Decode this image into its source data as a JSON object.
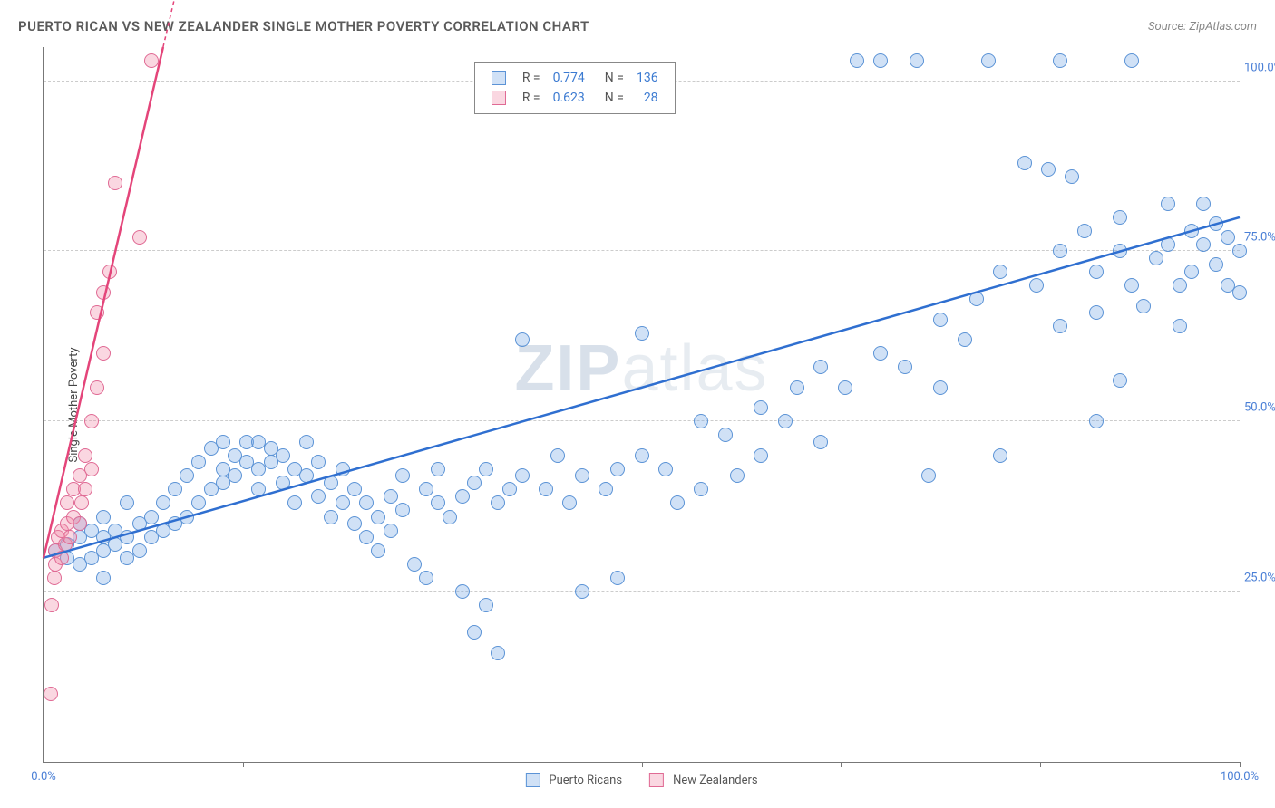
{
  "header": {
    "title": "PUERTO RICAN VS NEW ZEALANDER SINGLE MOTHER POVERTY CORRELATION CHART",
    "source": "Source: ZipAtlas.com"
  },
  "watermark": "ZIPatlas",
  "chart": {
    "type": "scatter",
    "ylabel": "Single Mother Poverty",
    "xlim": [
      0,
      100
    ],
    "ylim": [
      0,
      105
    ],
    "background_color": "#ffffff",
    "grid_color": "#cccccc",
    "grid_dash": true,
    "ygrid_values": [
      25,
      50,
      75,
      100
    ],
    "ytick_labels": [
      "25.0%",
      "50.0%",
      "75.0%",
      "100.0%"
    ],
    "ytick_color": "#4a7fd6",
    "xtick_values": [
      0,
      16.67,
      33.33,
      50,
      66.67,
      83.33,
      100
    ],
    "xaxis_min_label": "0.0%",
    "xaxis_max_label": "100.0%",
    "xaxis_label_color": "#4a7fd6",
    "point_radius": 8,
    "point_border_width": 1,
    "series": [
      {
        "name": "Puerto Ricans",
        "fill": "rgba(120,170,230,0.35)",
        "stroke": "#5b93d6",
        "trend": {
          "x1": 0,
          "y1": 30,
          "x2": 100,
          "y2": 80,
          "stroke": "#2f6fd0",
          "width": 2.5,
          "dash": false
        },
        "R": "0.774",
        "N": "136",
        "points": [
          [
            1,
            31
          ],
          [
            2,
            30
          ],
          [
            2,
            32
          ],
          [
            3,
            29
          ],
          [
            3,
            33
          ],
          [
            3,
            35
          ],
          [
            4,
            30
          ],
          [
            4,
            34
          ],
          [
            5,
            27
          ],
          [
            5,
            31
          ],
          [
            5,
            33
          ],
          [
            5,
            36
          ],
          [
            6,
            32
          ],
          [
            6,
            34
          ],
          [
            7,
            30
          ],
          [
            7,
            33
          ],
          [
            7,
            38
          ],
          [
            8,
            31
          ],
          [
            8,
            35
          ],
          [
            9,
            33
          ],
          [
            9,
            36
          ],
          [
            10,
            34
          ],
          [
            10,
            38
          ],
          [
            11,
            35
          ],
          [
            11,
            40
          ],
          [
            12,
            36
          ],
          [
            12,
            42
          ],
          [
            13,
            38
          ],
          [
            13,
            44
          ],
          [
            14,
            40
          ],
          [
            14,
            46
          ],
          [
            15,
            41
          ],
          [
            15,
            43
          ],
          [
            15,
            47
          ],
          [
            16,
            42
          ],
          [
            16,
            45
          ],
          [
            17,
            44
          ],
          [
            17,
            47
          ],
          [
            18,
            40
          ],
          [
            18,
            43
          ],
          [
            18,
            47
          ],
          [
            19,
            44
          ],
          [
            19,
            46
          ],
          [
            20,
            41
          ],
          [
            20,
            45
          ],
          [
            21,
            38
          ],
          [
            21,
            43
          ],
          [
            22,
            42
          ],
          [
            22,
            47
          ],
          [
            23,
            39
          ],
          [
            23,
            44
          ],
          [
            24,
            36
          ],
          [
            24,
            41
          ],
          [
            25,
            38
          ],
          [
            25,
            43
          ],
          [
            26,
            35
          ],
          [
            26,
            40
          ],
          [
            27,
            33
          ],
          [
            27,
            38
          ],
          [
            28,
            31
          ],
          [
            28,
            36
          ],
          [
            29,
            34
          ],
          [
            29,
            39
          ],
          [
            30,
            37
          ],
          [
            30,
            42
          ],
          [
            31,
            29
          ],
          [
            32,
            27
          ],
          [
            32,
            40
          ],
          [
            33,
            38
          ],
          [
            33,
            43
          ],
          [
            34,
            36
          ],
          [
            35,
            39
          ],
          [
            35,
            25
          ],
          [
            36,
            41
          ],
          [
            36,
            19
          ],
          [
            37,
            43
          ],
          [
            37,
            23
          ],
          [
            38,
            38
          ],
          [
            38,
            16
          ],
          [
            39,
            40
          ],
          [
            40,
            42
          ],
          [
            40,
            62
          ],
          [
            42,
            40
          ],
          [
            43,
            45
          ],
          [
            44,
            38
          ],
          [
            45,
            42
          ],
          [
            45,
            25
          ],
          [
            47,
            40
          ],
          [
            48,
            43
          ],
          [
            48,
            27
          ],
          [
            50,
            45
          ],
          [
            50,
            63
          ],
          [
            52,
            43
          ],
          [
            53,
            38
          ],
          [
            55,
            50
          ],
          [
            55,
            40
          ],
          [
            57,
            48
          ],
          [
            58,
            42
          ],
          [
            60,
            52
          ],
          [
            60,
            45
          ],
          [
            62,
            50
          ],
          [
            63,
            55
          ],
          [
            65,
            58
          ],
          [
            65,
            47
          ],
          [
            67,
            55
          ],
          [
            68,
            103
          ],
          [
            70,
            60
          ],
          [
            70,
            103
          ],
          [
            72,
            58
          ],
          [
            73,
            103
          ],
          [
            74,
            42
          ],
          [
            75,
            65
          ],
          [
            75,
            55
          ],
          [
            77,
            62
          ],
          [
            78,
            68
          ],
          [
            79,
            103
          ],
          [
            80,
            72
          ],
          [
            80,
            45
          ],
          [
            82,
            88
          ],
          [
            83,
            70
          ],
          [
            84,
            87
          ],
          [
            85,
            75
          ],
          [
            85,
            64
          ],
          [
            85,
            103
          ],
          [
            86,
            86
          ],
          [
            87,
            78
          ],
          [
            88,
            72
          ],
          [
            88,
            66
          ],
          [
            88,
            50
          ],
          [
            90,
            56
          ],
          [
            90,
            80
          ],
          [
            90,
            75
          ],
          [
            91,
            70
          ],
          [
            91,
            103
          ],
          [
            92,
            67
          ],
          [
            93,
            74
          ],
          [
            94,
            82
          ],
          [
            94,
            76
          ],
          [
            95,
            70
          ],
          [
            95,
            64
          ],
          [
            96,
            78
          ],
          [
            96,
            72
          ],
          [
            97,
            82
          ],
          [
            97,
            76
          ],
          [
            98,
            79
          ],
          [
            98,
            73
          ],
          [
            99,
            77
          ],
          [
            99,
            70
          ],
          [
            100,
            75
          ],
          [
            100,
            69
          ]
        ]
      },
      {
        "name": "New Zealanders",
        "fill": "rgba(240,140,170,0.35)",
        "stroke": "#e06a94",
        "trend": {
          "x1": 0,
          "y1": 30,
          "x2": 10,
          "y2": 105,
          "stroke": "#e4457a",
          "width": 2.5,
          "dash": false,
          "dash_extend": true
        },
        "R": "0.623",
        "N": "28",
        "points": [
          [
            0.6,
            10
          ],
          [
            0.7,
            23
          ],
          [
            0.9,
            27
          ],
          [
            1,
            29
          ],
          [
            1,
            31
          ],
          [
            1.2,
            33
          ],
          [
            1.5,
            30
          ],
          [
            1.5,
            34
          ],
          [
            1.8,
            32
          ],
          [
            2,
            35
          ],
          [
            2,
            38
          ],
          [
            2.2,
            33
          ],
          [
            2.5,
            36
          ],
          [
            2.5,
            40
          ],
          [
            3,
            35
          ],
          [
            3,
            42
          ],
          [
            3.2,
            38
          ],
          [
            3.5,
            40
          ],
          [
            3.5,
            45
          ],
          [
            4,
            43
          ],
          [
            4,
            50
          ],
          [
            4.5,
            55
          ],
          [
            4.5,
            66
          ],
          [
            5,
            60
          ],
          [
            5,
            69
          ],
          [
            5.5,
            72
          ],
          [
            6,
            85
          ],
          [
            8,
            77
          ],
          [
            9,
            103
          ]
        ]
      }
    ],
    "legend_box": {
      "top_pct": 2,
      "left_pct": 36,
      "r_label": "R =",
      "n_label": "N =",
      "value_color": "#3b7ad1"
    },
    "bottom_legend": {
      "items": [
        "Puerto Ricans",
        "New Zealanders"
      ]
    }
  }
}
